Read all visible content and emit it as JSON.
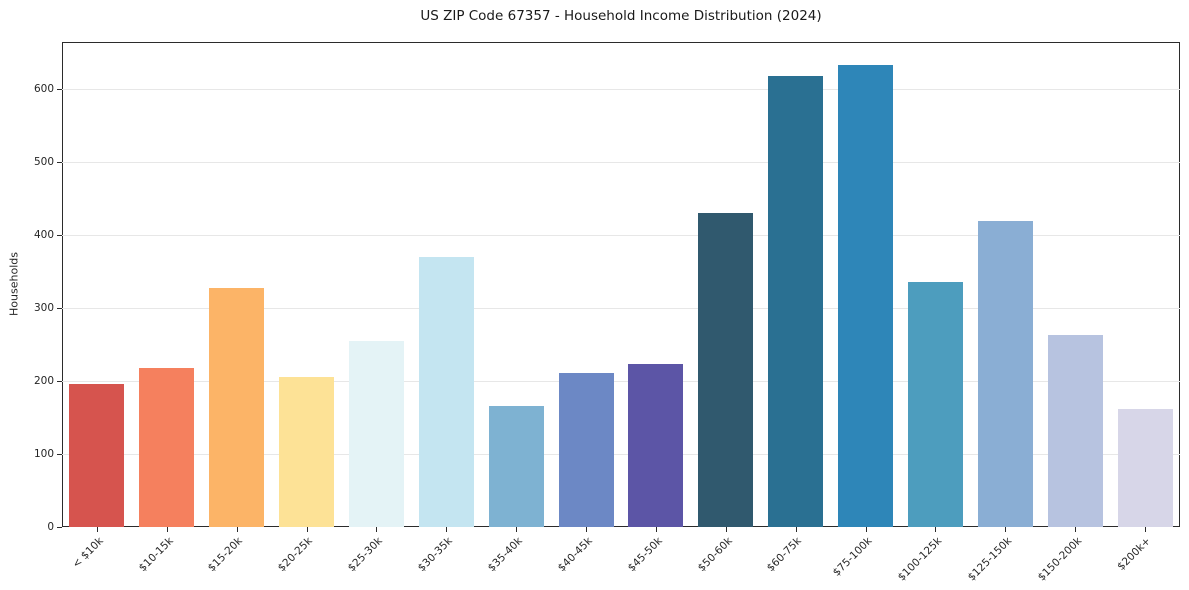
{
  "chart_data": {
    "type": "bar",
    "title": "US ZIP Code 67357 - Household Income Distribution (2024)",
    "xlabel": "",
    "ylabel": "Households",
    "categories": [
      "< $10k",
      "$10-15k",
      "$15-20k",
      "$20-25k",
      "$25-30k",
      "$30-35k",
      "$35-40k",
      "$40-45k",
      "$45-50k",
      "$50-60k",
      "$60-75k",
      "$75-100k",
      "$100-125k",
      "$125-150k",
      "$150-200k",
      "$200k+"
    ],
    "values": [
      196,
      217,
      327,
      205,
      255,
      369,
      166,
      211,
      223,
      430,
      617,
      632,
      335,
      419,
      263,
      161
    ],
    "colors": [
      "#d6544e",
      "#f5805e",
      "#fcb467",
      "#fde296",
      "#e4f3f6",
      "#c4e5f1",
      "#7eb2d2",
      "#6c88c5",
      "#5c55a6",
      "#30596e",
      "#2a7092",
      "#2e86b8",
      "#4d9dbe",
      "#8aaed4",
      "#b7c3e0",
      "#d7d6e8"
    ],
    "ylim": [
      0,
      664
    ],
    "yticks": [
      0,
      100,
      200,
      300,
      400,
      500,
      600
    ],
    "grid": "horizontal",
    "grid_color": "#e7e7e7",
    "legend": "none",
    "background": "#ffffff"
  }
}
